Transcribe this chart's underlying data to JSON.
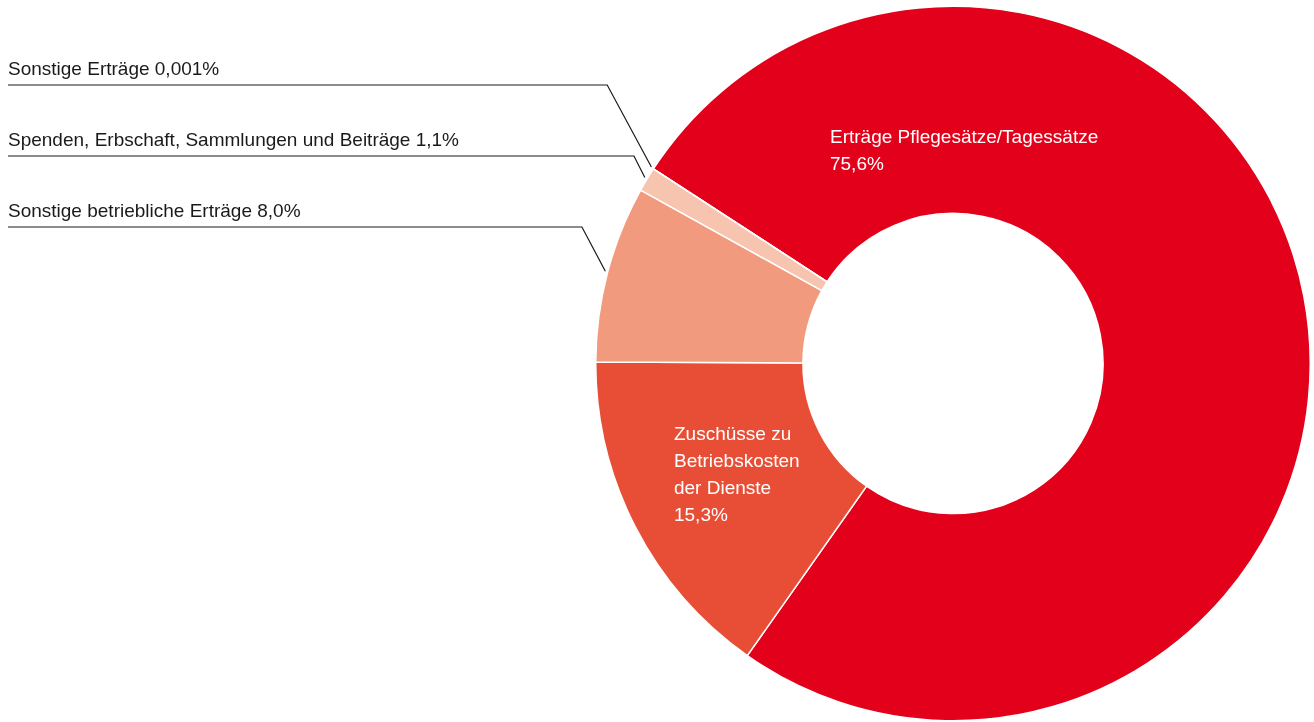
{
  "chart_data": {
    "type": "donut",
    "categories": [
      "Erträge Pflegesätze/Tagessätze",
      "Zuschüsse zu Betriebskosten der Dienste",
      "Sonstige betriebliche Erträge",
      "Spenden, Erbschaft, Sammlungen und Beiträge",
      "Sonstige Erträge"
    ],
    "values": [
      75.6,
      15.3,
      8.0,
      1.1,
      0.001
    ],
    "colors": [
      "#e2001a",
      "#e84e35",
      "#f29a7e",
      "#f7c4b0",
      "#f9d9cc"
    ],
    "value_labels": [
      "75,6%",
      "15,3%",
      "8,0%",
      "1,1%",
      "0,001%"
    ]
  }
}
